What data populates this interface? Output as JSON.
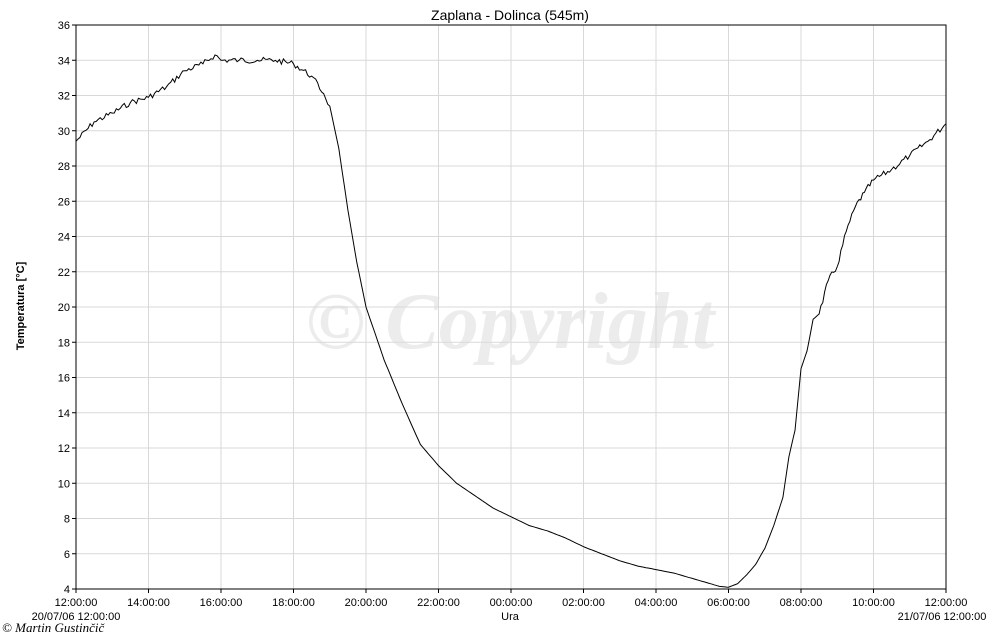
{
  "chart_data": {
    "type": "line",
    "title": "Zaplana - Dolinca (545m)",
    "xlabel": "Ura",
    "ylabel": "Temperatura [°C]",
    "ylim": [
      4,
      36
    ],
    "y_ticks": [
      4,
      6,
      8,
      10,
      12,
      14,
      16,
      18,
      20,
      22,
      24,
      26,
      28,
      30,
      32,
      34,
      36
    ],
    "x_tick_labels": [
      "12:00:00",
      "14:00:00",
      "16:00:00",
      "18:00:00",
      "20:00:00",
      "22:00:00",
      "00:00:00",
      "02:00:00",
      "04:00:00",
      "06:00:00",
      "08:00:00",
      "10:00:00",
      "12:00:00"
    ],
    "x_start_label": "20/07/06 12:00:00",
    "x_end_label": "21/07/06 12:00:00",
    "grid": true,
    "series": [
      {
        "color": "#000000",
        "x": [
          "20/07/06 12:00",
          "20/07/06 12:30",
          "20/07/06 13:00",
          "20/07/06 13:30",
          "20/07/06 14:00",
          "20/07/06 14:30",
          "20/07/06 15:00",
          "20/07/06 15:30",
          "20/07/06 15:50",
          "20/07/06 16:00",
          "20/07/06 16:30",
          "20/07/06 17:00",
          "20/07/06 17:30",
          "20/07/06 18:00",
          "20/07/06 18:30",
          "20/07/06 18:50",
          "20/07/06 19:00",
          "20/07/06 19:15",
          "20/07/06 19:30",
          "20/07/06 19:45",
          "20/07/06 20:00",
          "20/07/06 20:30",
          "20/07/06 21:00",
          "20/07/06 21:30",
          "20/07/06 22:00",
          "20/07/06 22:30",
          "20/07/06 23:00",
          "20/07/06 23:30",
          "21/07/06 00:00",
          "21/07/06 00:30",
          "21/07/06 01:00",
          "21/07/06 01:30",
          "21/07/06 02:00",
          "21/07/06 02:30",
          "21/07/06 03:00",
          "21/07/06 03:30",
          "21/07/06 04:00",
          "21/07/06 04:30",
          "21/07/06 05:00",
          "21/07/06 05:30",
          "21/07/06 05:45",
          "21/07/06 06:00",
          "21/07/06 06:15",
          "21/07/06 06:30",
          "21/07/06 06:45",
          "21/07/06 07:00",
          "21/07/06 07:15",
          "21/07/06 07:30",
          "21/07/06 07:40",
          "21/07/06 07:50",
          "21/07/06 08:00",
          "21/07/06 08:10",
          "21/07/06 08:20",
          "21/07/06 08:30",
          "21/07/06 08:45",
          "21/07/06 09:00",
          "21/07/06 09:15",
          "21/07/06 09:30",
          "21/07/06 09:45",
          "21/07/06 10:00",
          "21/07/06 10:30",
          "21/07/06 11:00",
          "21/07/06 11:30",
          "21/07/06 12:00"
        ],
        "y": [
          29.4,
          30.5,
          31.0,
          31.6,
          31.9,
          32.5,
          33.4,
          33.8,
          34.3,
          34.0,
          34.0,
          34.0,
          34.0,
          33.8,
          33.1,
          32.1,
          31.4,
          29.0,
          25.5,
          22.5,
          20.0,
          17.0,
          14.5,
          12.2,
          11.0,
          10.0,
          9.3,
          8.6,
          8.1,
          7.6,
          7.3,
          6.9,
          6.4,
          6.0,
          5.6,
          5.3,
          5.1,
          4.9,
          4.6,
          4.3,
          4.15,
          4.1,
          4.3,
          4.8,
          5.4,
          6.3,
          7.6,
          9.2,
          11.5,
          13.0,
          16.5,
          17.5,
          19.3,
          19.6,
          21.5,
          22.3,
          24.3,
          25.7,
          26.5,
          27.2,
          27.8,
          28.6,
          29.4,
          30.4
        ]
      }
    ]
  },
  "watermark": "© Copyright",
  "credit": "© Martin Gustinčič"
}
